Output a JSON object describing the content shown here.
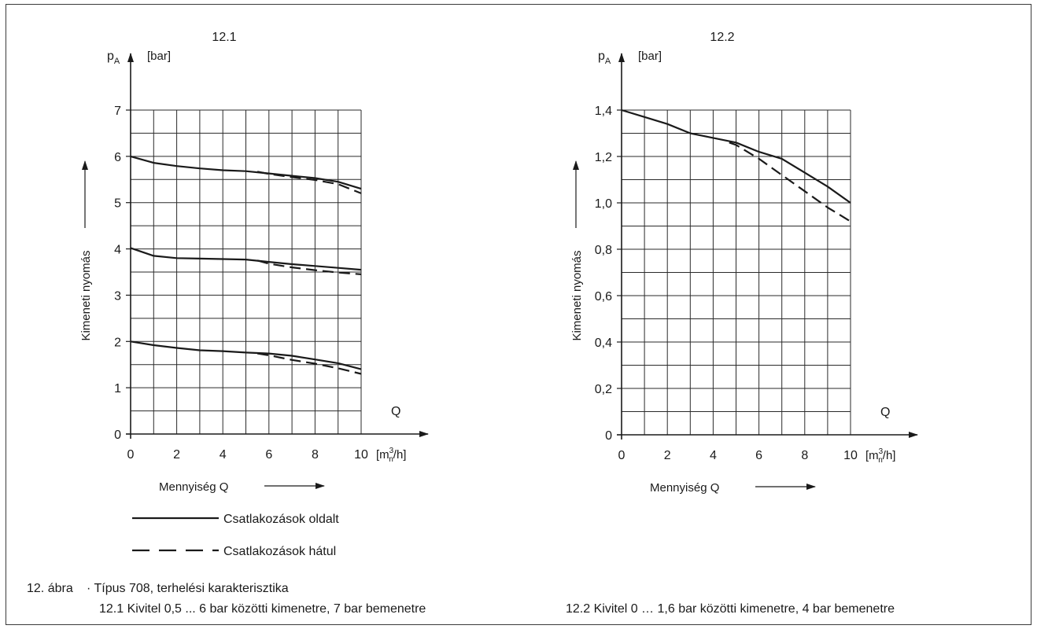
{
  "chart_data": [
    {
      "type": "line",
      "title": "12.1",
      "y_symbol": "p",
      "y_symbol_sub": "A",
      "y_unit": "[bar]",
      "ylabel": "Kimeneti nyomás",
      "xlabel": "Mennyiség Q",
      "x_symbol": "Q",
      "x_unit_prefix": "[m",
      "x_unit_sup": "3",
      "x_unit_sub": "n",
      "x_unit_suffix": "/h]",
      "xlim": [
        0,
        10
      ],
      "ylim": [
        0,
        7
      ],
      "x_ticks": [
        "0",
        "2",
        "4",
        "6",
        "8",
        "10"
      ],
      "y_ticks": [
        "0",
        "1",
        "2",
        "3",
        "4",
        "5",
        "6",
        "7"
      ],
      "grid": true,
      "series": [
        {
          "legend": 0,
          "style": "solid",
          "x": [
            0,
            1,
            2,
            3,
            4,
            5,
            6,
            7,
            8,
            9,
            10
          ],
          "y": [
            6.0,
            5.86,
            5.79,
            5.74,
            5.7,
            5.68,
            5.63,
            5.58,
            5.53,
            5.45,
            5.3
          ]
        },
        {
          "legend": 1,
          "style": "dashed",
          "x": [
            5.5,
            6,
            7,
            8,
            9,
            10
          ],
          "y": [
            5.67,
            5.62,
            5.55,
            5.49,
            5.4,
            5.2
          ]
        },
        {
          "legend": 0,
          "style": "solid",
          "x": [
            0,
            1,
            2,
            3,
            4,
            5,
            6,
            7,
            8,
            9,
            10
          ],
          "y": [
            4.02,
            3.85,
            3.8,
            3.79,
            3.78,
            3.77,
            3.72,
            3.67,
            3.63,
            3.59,
            3.55
          ]
        },
        {
          "legend": 1,
          "style": "dashed",
          "x": [
            5.5,
            6,
            7,
            8,
            9,
            10
          ],
          "y": [
            3.75,
            3.68,
            3.6,
            3.54,
            3.49,
            3.45
          ]
        },
        {
          "legend": 0,
          "style": "solid",
          "x": [
            0,
            1,
            2,
            3,
            4,
            5,
            6,
            7,
            8,
            9,
            10
          ],
          "y": [
            2.0,
            1.92,
            1.86,
            1.81,
            1.79,
            1.76,
            1.74,
            1.69,
            1.61,
            1.53,
            1.4
          ]
        },
        {
          "legend": 1,
          "style": "dashed",
          "x": [
            5.5,
            6,
            7,
            8,
            9,
            10
          ],
          "y": [
            1.74,
            1.7,
            1.6,
            1.52,
            1.42,
            1.3
          ]
        }
      ]
    },
    {
      "type": "line",
      "title": "12.2",
      "y_symbol": "p",
      "y_symbol_sub": "A",
      "y_unit": "[bar]",
      "ylabel": "Kimeneti nyomás",
      "xlabel": "Mennyiség Q",
      "x_symbol": "Q",
      "x_unit_prefix": "[m",
      "x_unit_sup": "3",
      "x_unit_sub": "n",
      "x_unit_suffix": "/h]",
      "xlim": [
        0,
        10
      ],
      "ylim": [
        0,
        1.4
      ],
      "x_ticks": [
        "0",
        "2",
        "4",
        "6",
        "8",
        "10"
      ],
      "y_ticks": [
        "0",
        "0,2",
        "0,4",
        "0,6",
        "0,8",
        "1,0",
        "1,2",
        "1,4"
      ],
      "grid": true,
      "series": [
        {
          "legend": 0,
          "style": "solid",
          "x": [
            0,
            1,
            2,
            3,
            4,
            5,
            6,
            7,
            8,
            9,
            10
          ],
          "y": [
            1.4,
            1.37,
            1.34,
            1.3,
            1.28,
            1.26,
            1.22,
            1.19,
            1.13,
            1.07,
            1.0
          ]
        },
        {
          "legend": 1,
          "style": "dashed",
          "x": [
            4.7,
            5,
            6,
            7,
            8,
            9,
            10
          ],
          "y": [
            1.26,
            1.25,
            1.19,
            1.12,
            1.05,
            0.98,
            0.92
          ]
        }
      ]
    }
  ],
  "legend": [
    {
      "label": "Csatlakozások oldalt",
      "style": "solid"
    },
    {
      "label": "Csatlakozások hátul",
      "style": "dashed"
    }
  ],
  "caption": {
    "figure_label": "12. ábra",
    "title": "· Típus 708, terhelési karakterisztika",
    "sub_left": "12.1 Kivitel 0,5 ... 6 bar közötti kimenetre, 7 bar bemenetre",
    "sub_right": "12.2 Kivitel 0 … 1,6 bar közötti kimenetre, 4 bar bemenetre"
  },
  "colors": {
    "ink": "#1a1a1a",
    "grid": "#2a2a2a",
    "frame": "#3a3a3a",
    "background": "#ffffff"
  }
}
